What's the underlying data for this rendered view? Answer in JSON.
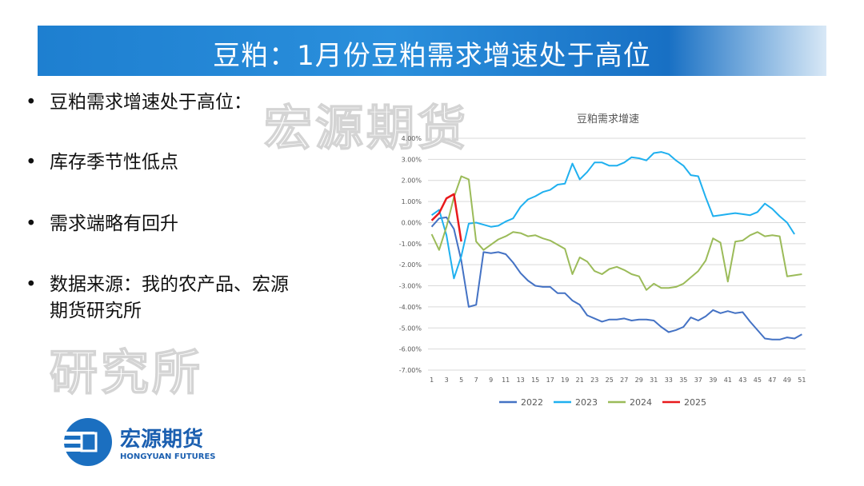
{
  "header": {
    "title": "豆粕：1月份豆粕需求增速处于高位"
  },
  "bullets": [
    "豆粕需求增速处于高位：",
    "库存季节性低点",
    "需求端略有回升",
    "数据来源：我的农产品、宏源期货研究所"
  ],
  "watermark": [
    "宏源期货",
    "研究所"
  ],
  "logo": {
    "name": "宏源期货",
    "english": "HONGYUAN FUTURES"
  },
  "chart_data": {
    "type": "line",
    "title": "豆粕需求增速",
    "x": [
      1,
      2,
      3,
      4,
      5,
      6,
      7,
      8,
      9,
      10,
      11,
      12,
      13,
      14,
      15,
      16,
      17,
      18,
      19,
      20,
      21,
      22,
      23,
      24,
      25,
      26,
      27,
      28,
      29,
      30,
      31,
      32,
      33,
      34,
      35,
      36,
      37,
      38,
      39,
      40,
      41,
      42,
      43,
      44,
      45,
      46,
      47,
      48,
      49,
      50,
      51
    ],
    "xlim": [
      0.5,
      51.5
    ],
    "xticks": [
      1,
      3,
      5,
      7,
      9,
      11,
      13,
      15,
      17,
      19,
      21,
      23,
      25,
      27,
      29,
      31,
      33,
      35,
      37,
      39,
      41,
      43,
      45,
      47,
      49,
      51
    ],
    "ylim": [
      -7,
      4
    ],
    "yticks": [
      {
        "value": 4,
        "label": "4.00%"
      },
      {
        "value": 3,
        "label": "3.00%"
      },
      {
        "value": 2,
        "label": "2.00%"
      },
      {
        "value": 1,
        "label": "1.00%"
      },
      {
        "value": 0,
        "label": "0.00%"
      },
      {
        "value": -1,
        "label": "-1.00%"
      },
      {
        "value": -2,
        "label": "-2.00%"
      },
      {
        "value": -3,
        "label": "-3.00%"
      },
      {
        "value": -4,
        "label": "-4.00%"
      },
      {
        "value": -5,
        "label": "-5.00%"
      },
      {
        "value": -6,
        "label": "-6.00%"
      },
      {
        "value": -7,
        "label": "-7.00%"
      }
    ],
    "grid": true,
    "legend": "bottom",
    "series": [
      {
        "name": "2022",
        "color": "#4472c4",
        "values": [
          -0.2,
          0.2,
          0.25,
          -0.3,
          -1.8,
          -4.0,
          -3.9,
          -1.4,
          -1.45,
          -1.4,
          -1.5,
          -1.9,
          -2.4,
          -2.75,
          -3.0,
          -3.05,
          -3.05,
          -3.35,
          -3.35,
          -3.7,
          -3.9,
          -4.4,
          -4.55,
          -4.7,
          -4.6,
          -4.6,
          -4.55,
          -4.65,
          -4.6,
          -4.6,
          -4.65,
          -4.95,
          -5.2,
          -5.1,
          -4.95,
          -4.5,
          -4.65,
          -4.45,
          -4.15,
          -4.3,
          -4.2,
          -4.3,
          -4.25,
          -4.7,
          -5.1,
          -5.5,
          -5.55,
          -5.55,
          -5.45,
          -5.5,
          -5.3
        ]
      },
      {
        "name": "2023",
        "color": "#1fb0ef",
        "values": [
          0.35,
          0.6,
          -0.6,
          -2.65,
          -1.6,
          -0.05,
          0.0,
          -0.1,
          -0.2,
          -0.15,
          0.05,
          0.2,
          0.75,
          1.1,
          1.25,
          1.45,
          1.55,
          1.8,
          1.85,
          2.8,
          2.05,
          2.4,
          2.85,
          2.85,
          2.7,
          2.7,
          2.85,
          3.1,
          3.05,
          2.95,
          3.3,
          3.35,
          3.25,
          2.95,
          2.7,
          2.25,
          2.2,
          1.2,
          0.3,
          0.35,
          0.4,
          0.45,
          0.4,
          0.35,
          0.5,
          0.9,
          0.65,
          0.3,
          0.0,
          -0.55,
          null
        ]
      },
      {
        "name": "2024",
        "color": "#9bbb59",
        "values": [
          -0.55,
          -1.3,
          -0.2,
          1.2,
          2.2,
          2.05,
          -0.9,
          -1.3,
          -1.05,
          -0.8,
          -0.65,
          -0.45,
          -0.5,
          -0.65,
          -0.6,
          -0.75,
          -0.85,
          -1.05,
          -1.25,
          -2.45,
          -1.65,
          -1.85,
          -2.3,
          -2.45,
          -2.2,
          -2.1,
          -2.25,
          -2.45,
          -2.55,
          -3.2,
          -2.9,
          -3.1,
          -3.1,
          -3.05,
          -2.9,
          -2.6,
          -2.3,
          -1.8,
          -0.75,
          -0.95,
          -2.8,
          -0.9,
          -0.85,
          -0.6,
          -0.45,
          -0.65,
          -0.6,
          -0.65,
          -2.55,
          -2.5,
          -2.45
        ]
      },
      {
        "name": "2025",
        "color": "#e8191c",
        "values": [
          0.1,
          0.45,
          1.15,
          1.35,
          -0.9,
          null,
          null,
          null,
          null,
          null,
          null,
          null,
          null,
          null,
          null,
          null,
          null,
          null,
          null,
          null,
          null,
          null,
          null,
          null,
          null,
          null,
          null,
          null,
          null,
          null,
          null,
          null,
          null,
          null,
          null,
          null,
          null,
          null,
          null,
          null,
          null,
          null,
          null,
          null,
          null,
          null,
          null,
          null,
          null,
          null,
          null
        ]
      }
    ]
  }
}
